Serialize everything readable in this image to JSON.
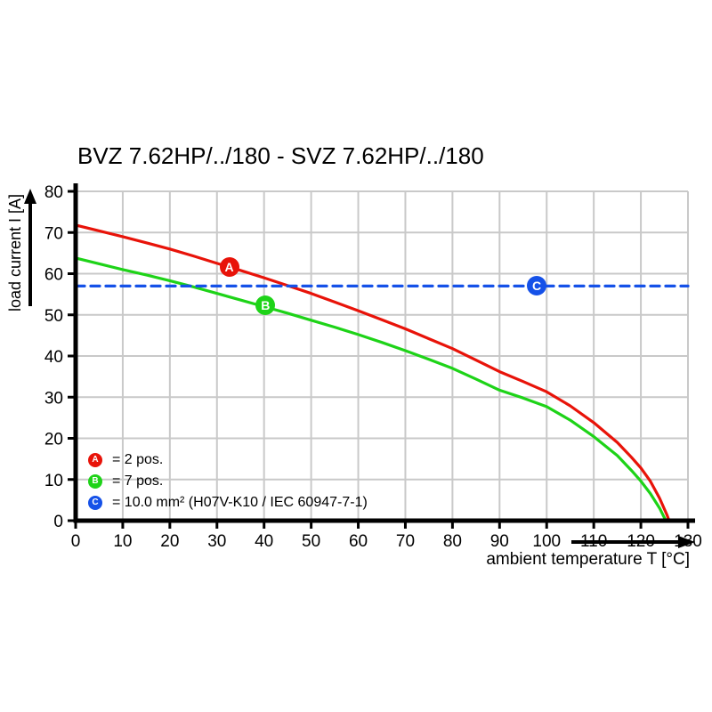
{
  "chart_data": {
    "type": "line",
    "title": "BVZ 7.62HP/../180 - SVZ 7.62HP/../180",
    "xlabel": "ambient temperature T [°C]",
    "ylabel": "load current I [A]",
    "xlim": [
      0,
      130
    ],
    "ylim": [
      0,
      80
    ],
    "x_ticks": [
      0,
      10,
      20,
      30,
      40,
      50,
      60,
      70,
      80,
      90,
      100,
      110,
      120,
      130
    ],
    "y_ticks": [
      0,
      10,
      20,
      30,
      40,
      50,
      60,
      70,
      80
    ],
    "grid": true,
    "grid_color": "#c9c9c9",
    "axis_color": "#000000",
    "legend_position": "bottom-left-inside",
    "series": [
      {
        "name": "A",
        "label": "2 pos.",
        "color": "#e81309",
        "style": "solid",
        "points": [
          [
            0,
            71.8
          ],
          [
            5,
            70.4
          ],
          [
            10,
            69
          ],
          [
            15,
            67.5
          ],
          [
            20,
            66
          ],
          [
            25,
            64.3
          ],
          [
            30,
            62.5
          ],
          [
            35,
            60.8
          ],
          [
            40,
            59
          ],
          [
            45,
            57.1
          ],
          [
            50,
            55.2
          ],
          [
            55,
            53.1
          ],
          [
            60,
            51
          ],
          [
            65,
            48.8
          ],
          [
            70,
            46.6
          ],
          [
            75,
            44.2
          ],
          [
            80,
            41.8
          ],
          [
            85,
            39
          ],
          [
            90,
            36.2
          ],
          [
            95,
            33.8
          ],
          [
            100,
            31.3
          ],
          [
            105,
            27.9
          ],
          [
            110,
            23.8
          ],
          [
            115,
            19
          ],
          [
            118,
            15.4
          ],
          [
            120,
            12.8
          ],
          [
            122,
            9.6
          ],
          [
            124,
            5.4
          ],
          [
            125.5,
            1.5
          ],
          [
            126,
            0
          ]
        ]
      },
      {
        "name": "B",
        "label": "7 pos.",
        "color": "#1ed318",
        "style": "solid",
        "points": [
          [
            0,
            63.8
          ],
          [
            5,
            62.4
          ],
          [
            10,
            61
          ],
          [
            15,
            59.7
          ],
          [
            20,
            58.3
          ],
          [
            25,
            56.8
          ],
          [
            30,
            55.2
          ],
          [
            35,
            53.6
          ],
          [
            40,
            52
          ],
          [
            45,
            50.4
          ],
          [
            50,
            48.7
          ],
          [
            55,
            47
          ],
          [
            60,
            45.2
          ],
          [
            65,
            43.3
          ],
          [
            70,
            41.3
          ],
          [
            75,
            39.2
          ],
          [
            80,
            37
          ],
          [
            85,
            34.4
          ],
          [
            90,
            31.7
          ],
          [
            95,
            29.8
          ],
          [
            100,
            27.7
          ],
          [
            105,
            24.4
          ],
          [
            110,
            20.4
          ],
          [
            115,
            15.8
          ],
          [
            118,
            12.2
          ],
          [
            120,
            9.6
          ],
          [
            122,
            6.6
          ],
          [
            124,
            3
          ],
          [
            125.3,
            0
          ]
        ]
      },
      {
        "name": "C",
        "label": "10.0 mm² (H07V-K10 / IEC 60947-7-1)",
        "color": "#1551e8",
        "style": "dashed",
        "dash": "10 7",
        "points": [
          [
            0,
            57
          ],
          [
            130,
            57
          ]
        ]
      }
    ],
    "markers": [
      {
        "label": "A",
        "x": 32.6,
        "y": 61.7,
        "color": "#e81309"
      },
      {
        "label": "B",
        "x": 40.3,
        "y": 52.3,
        "color": "#1ed318"
      },
      {
        "label": "C",
        "x": 97.9,
        "y": 57.0,
        "color": "#1551e8"
      }
    ],
    "legend": [
      {
        "key": "A",
        "color": "#e81309",
        "text": "= 2 pos."
      },
      {
        "key": "B",
        "color": "#1ed318",
        "text": "= 7 pos."
      },
      {
        "key": "C",
        "color": "#1551e8",
        "text": "= 10.0 mm² (H07V-K10 / IEC 60947-7-1)"
      }
    ]
  }
}
